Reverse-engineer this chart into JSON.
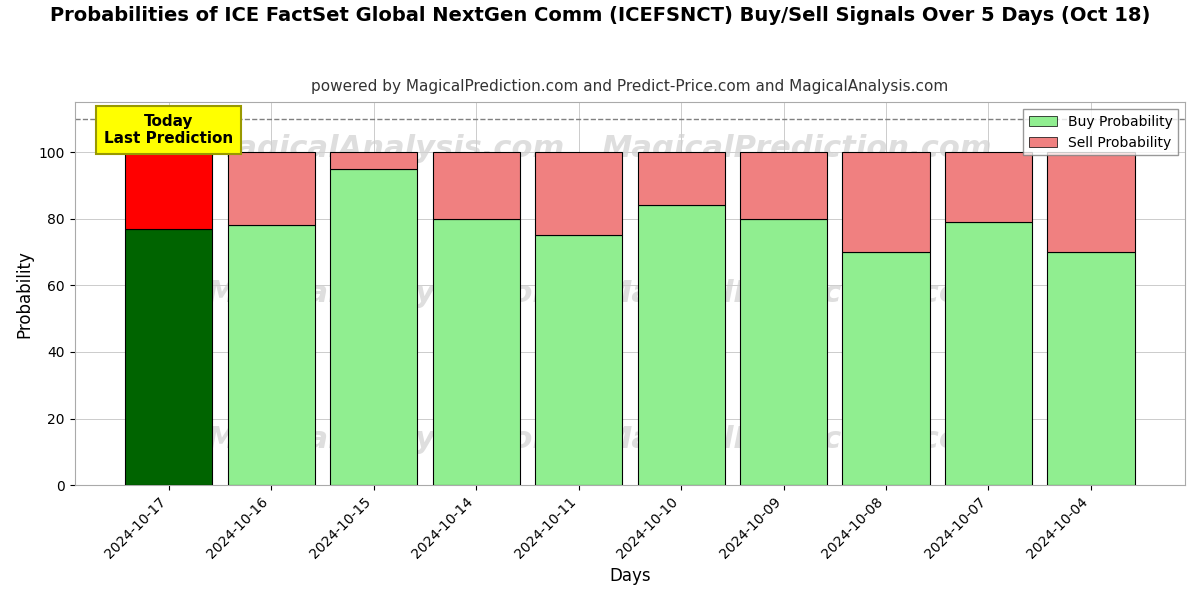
{
  "title": "Probabilities of ICE FactSet Global NextGen Comm (ICEFSNCT) Buy/Sell Signals Over 5 Days (Oct 18)",
  "subtitle": "powered by MagicalPrediction.com and Predict-Price.com and MagicalAnalysis.com",
  "xlabel": "Days",
  "ylabel": "Probability",
  "categories": [
    "2024-10-17",
    "2024-10-16",
    "2024-10-15",
    "2024-10-14",
    "2024-10-11",
    "2024-10-10",
    "2024-10-09",
    "2024-10-08",
    "2024-10-07",
    "2024-10-04"
  ],
  "buy_values": [
    77,
    78,
    95,
    80,
    75,
    84,
    80,
    70,
    79,
    70
  ],
  "sell_values": [
    23,
    22,
    5,
    20,
    25,
    16,
    20,
    30,
    21,
    30
  ],
  "buy_color_today": "#006400",
  "sell_color_today": "#FF0000",
  "buy_color_normal": "#90EE90",
  "sell_color_normal": "#F08080",
  "today_label_bg": "#FFFF00",
  "today_label_text": "Today\nLast Prediction",
  "ylim": [
    0,
    115
  ],
  "yticks": [
    0,
    20,
    40,
    60,
    80,
    100
  ],
  "dashed_line_y": 110,
  "grid_color": "#cccccc",
  "bg_color": "#ffffff",
  "watermark_left": "MagicalAnalysis.com",
  "watermark_right": "MagicalPrediction.com",
  "title_fontsize": 14,
  "subtitle_fontsize": 11,
  "legend_buy": "Buy Probability",
  "legend_sell": "Sell Probability"
}
